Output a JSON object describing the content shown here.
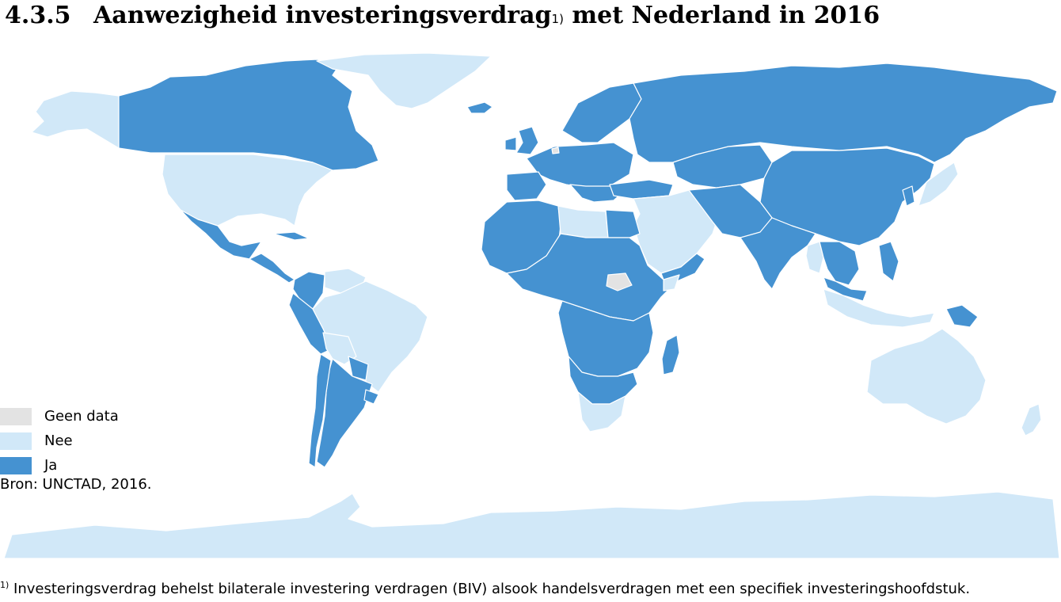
{
  "header": {
    "number": "4.3.5",
    "title": "Aanwezigheid investeringsverdrag",
    "title_sup": "1)",
    "title_suffix": "met Nederland in 2016"
  },
  "colors": {
    "geen_data": "#e3e3e3",
    "nee": "#d1e8f8",
    "ja": "#4592d1",
    "border": "#ffffff"
  },
  "legend": {
    "items": [
      {
        "label": "Geen data",
        "color": "#e3e3e3"
      },
      {
        "label": "Nee",
        "color": "#d1e8f8"
      },
      {
        "label": "Ja",
        "color": "#4592d1"
      }
    ]
  },
  "source": "Bron: UNCTAD, 2016.",
  "footnote": {
    "marker": "1)",
    "text": "Investeringsverdrag behelst bilaterale investering verdragen (BIV) alsook handelsverdragen met een specifiek investeringshoofdstuk."
  }
}
